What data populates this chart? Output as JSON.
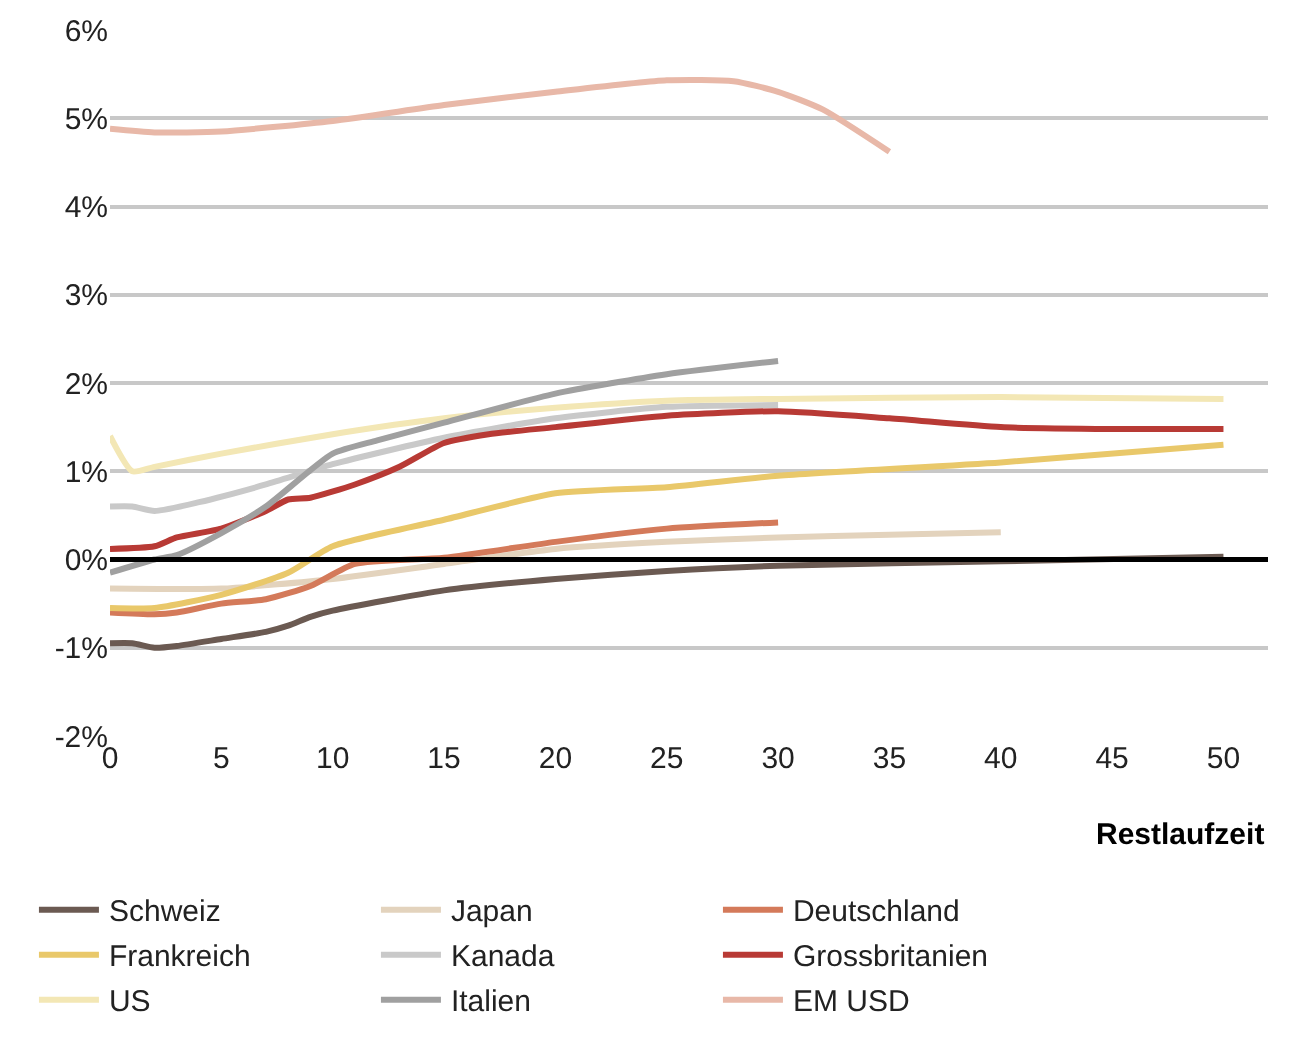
{
  "chart_data": {
    "type": "line",
    "xlabel": "Restlaufzeit",
    "xlim": [
      0,
      52
    ],
    "xticks": [
      0,
      5,
      10,
      15,
      20,
      25,
      30,
      35,
      40,
      45,
      50
    ],
    "ylim": [
      -2,
      6
    ],
    "yticks": [
      {
        "value": -2,
        "label": "-2%"
      },
      {
        "value": -1,
        "label": "-1%"
      },
      {
        "value": 0,
        "label": "0%"
      },
      {
        "value": 1,
        "label": "1%"
      },
      {
        "value": 2,
        "label": "2%"
      },
      {
        "value": 3,
        "label": "3%"
      },
      {
        "value": 4,
        "label": "4%"
      },
      {
        "value": 5,
        "label": "5%"
      },
      {
        "value": 6,
        "label": "6%"
      }
    ],
    "grid": "y",
    "legend": "bottom",
    "marker": "none",
    "line_style": "solid",
    "ref_lines": [
      {
        "axis": "y",
        "value": 0,
        "color": "#000000"
      }
    ],
    "series": [
      {
        "name": "Schweiz",
        "color": "#6b5a52",
        "x": [
          0,
          1,
          2,
          3,
          5,
          7,
          8,
          9,
          10,
          15,
          20,
          25,
          30,
          40,
          50
        ],
        "values": [
          -0.95,
          -0.95,
          -1.0,
          -0.98,
          -0.9,
          -0.82,
          -0.75,
          -0.65,
          -0.58,
          -0.35,
          -0.22,
          -0.13,
          -0.07,
          -0.02,
          0.03
        ]
      },
      {
        "name": "Japan",
        "color": "#e3d3bd",
        "x": [
          0,
          5,
          10,
          15,
          20,
          25,
          30,
          35,
          40
        ],
        "values": [
          -0.33,
          -0.33,
          -0.22,
          -0.05,
          0.12,
          0.2,
          0.25,
          0.28,
          0.31
        ]
      },
      {
        "name": "Deutschland",
        "color": "#d47a5a",
        "x": [
          0,
          2,
          3,
          5,
          7,
          9,
          11,
          15,
          20,
          25,
          30
        ],
        "values": [
          -0.6,
          -0.62,
          -0.6,
          -0.5,
          -0.45,
          -0.3,
          -0.05,
          0.02,
          0.2,
          0.35,
          0.42
        ]
      },
      {
        "name": "Frankreich",
        "color": "#e9c86a",
        "x": [
          0,
          2,
          5,
          8,
          10,
          15,
          20,
          25,
          30,
          40,
          50
        ],
        "values": [
          -0.55,
          -0.55,
          -0.4,
          -0.15,
          0.15,
          0.45,
          0.75,
          0.82,
          0.95,
          1.1,
          1.3
        ]
      },
      {
        "name": "Kanada",
        "color": "#c9c9c9",
        "x": [
          0,
          1,
          2,
          4,
          7,
          10,
          15,
          20,
          25,
          30
        ],
        "values": [
          0.6,
          0.6,
          0.55,
          0.65,
          0.85,
          1.08,
          1.38,
          1.6,
          1.73,
          1.75
        ]
      },
      {
        "name": "Grossbritanien",
        "color": "#b83a35",
        "x": [
          0,
          2,
          3,
          5,
          7,
          8,
          9,
          11,
          13,
          15,
          17,
          20,
          25,
          30,
          35,
          40,
          45,
          50
        ],
        "values": [
          0.12,
          0.15,
          0.25,
          0.35,
          0.55,
          0.68,
          0.7,
          0.85,
          1.05,
          1.32,
          1.42,
          1.5,
          1.63,
          1.68,
          1.6,
          1.5,
          1.48,
          1.48
        ]
      },
      {
        "name": "US",
        "color": "#f3e7b5",
        "x": [
          0,
          1,
          2,
          5,
          10,
          15,
          20,
          25,
          30,
          40,
          50
        ],
        "values": [
          1.4,
          1.0,
          1.05,
          1.2,
          1.42,
          1.6,
          1.72,
          1.8,
          1.82,
          1.84,
          1.82
        ]
      },
      {
        "name": "Italien",
        "color": "#a0a0a0",
        "x": [
          0,
          2,
          3,
          5,
          7,
          10,
          12,
          15,
          20,
          25,
          30
        ],
        "values": [
          -0.15,
          0.0,
          0.05,
          0.3,
          0.6,
          1.2,
          1.35,
          1.55,
          1.88,
          2.1,
          2.25
        ]
      },
      {
        "name": "EM USD",
        "color": "#e8b8a8",
        "x": [
          0,
          2,
          5,
          10,
          15,
          20,
          25,
          28,
          30,
          32,
          35
        ],
        "values": [
          4.88,
          4.84,
          4.85,
          4.97,
          5.15,
          5.3,
          5.43,
          5.42,
          5.3,
          5.1,
          4.62
        ]
      }
    ]
  }
}
